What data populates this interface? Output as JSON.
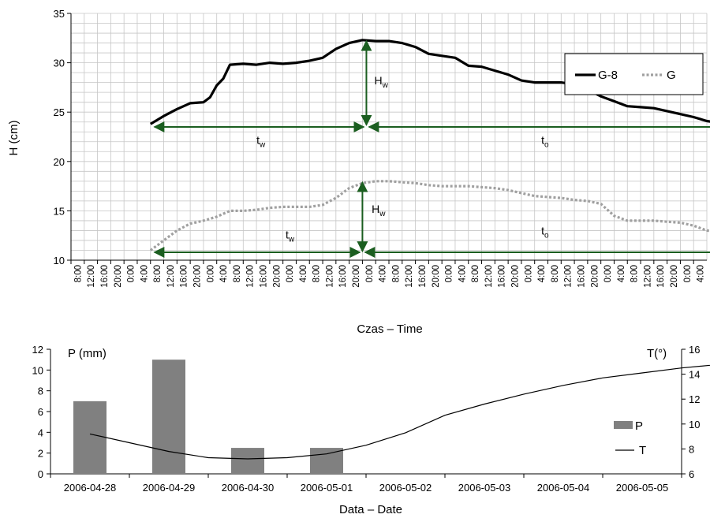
{
  "chart_data": [
    {
      "type": "line",
      "ylabel": "H (cm)",
      "xlabel": "Czas – Time",
      "ylim": [
        10,
        35
      ],
      "yticks": [
        "10",
        "15",
        "20",
        "25",
        "30",
        "35"
      ],
      "x_tick_labels": [
        "8:00",
        "12:00",
        "16:00",
        "20:00",
        "0:00",
        "4:00",
        "8:00",
        "12:00",
        "16:00",
        "20:00",
        "0:00",
        "4:00",
        "8:00",
        "12:00",
        "16:00",
        "20:00",
        "0:00",
        "4:00",
        "8:00",
        "12:00",
        "16:00",
        "20:00",
        "0:00",
        "4:00",
        "8:00",
        "12:00",
        "16:00",
        "20:00",
        "0:00",
        "4:00",
        "8:00",
        "12:00",
        "16:00",
        "20:00",
        "0:00",
        "4:00",
        "8:00",
        "12:00",
        "16:00",
        "20:00",
        "0:00",
        "4:00",
        "8:00",
        "12:00",
        "16:00",
        "20:00",
        "0:00",
        "4:00"
      ],
      "x_unit_hours": 4,
      "grid": true,
      "legend_position": "top-right",
      "series": [
        {
          "name": "G-8",
          "style": "solid",
          "color": "#000000",
          "points": [
            [
              6,
              23.8
            ],
            [
              7,
              24.6
            ],
            [
              8,
              25.3
            ],
            [
              9,
              25.9
            ],
            [
              10,
              26
            ],
            [
              10.5,
              26.5
            ],
            [
              11,
              27.7
            ],
            [
              11.5,
              28.4
            ],
            [
              12,
              29.8
            ],
            [
              13,
              29.9
            ],
            [
              14,
              29.8
            ],
            [
              15,
              30
            ],
            [
              16,
              29.9
            ],
            [
              17,
              30
            ],
            [
              18,
              30.2
            ],
            [
              19,
              30.5
            ],
            [
              20,
              31.4
            ],
            [
              21,
              32
            ],
            [
              22,
              32.3
            ],
            [
              23,
              32.2
            ],
            [
              24,
              32.2
            ],
            [
              25,
              32
            ],
            [
              26,
              31.6
            ],
            [
              27,
              30.9
            ],
            [
              28,
              30.7
            ],
            [
              29,
              30.5
            ],
            [
              30,
              29.7
            ],
            [
              31,
              29.6
            ],
            [
              32,
              29.2
            ],
            [
              33,
              28.8
            ],
            [
              34,
              28.2
            ],
            [
              35,
              28
            ],
            [
              36,
              28
            ],
            [
              37,
              28
            ],
            [
              38,
              27.8
            ],
            [
              39,
              27.3
            ],
            [
              40,
              26.6
            ],
            [
              41,
              26.1
            ],
            [
              42,
              25.6
            ],
            [
              43,
              25.5
            ],
            [
              44,
              25.4
            ],
            [
              45,
              25.1
            ],
            [
              46,
              24.8
            ],
            [
              47,
              24.5
            ],
            [
              48,
              24.1
            ],
            [
              49,
              23.9
            ],
            [
              50,
              23.7
            ],
            [
              51,
              23.7
            ],
            [
              52,
              23.7
            ],
            [
              53,
              23.7
            ]
          ]
        },
        {
          "name": "G",
          "style": "dotted",
          "color": "#a0a0a0",
          "points": [
            [
              6,
              11
            ],
            [
              7,
              12
            ],
            [
              8,
              13
            ],
            [
              9,
              13.7
            ],
            [
              10,
              14
            ],
            [
              11,
              14.4
            ],
            [
              12,
              15
            ],
            [
              13,
              15
            ],
            [
              14,
              15.1
            ],
            [
              15,
              15.3
            ],
            [
              16,
              15.4
            ],
            [
              17,
              15.4
            ],
            [
              18,
              15.4
            ],
            [
              19,
              15.6
            ],
            [
              20,
              16.3
            ],
            [
              21,
              17.3
            ],
            [
              22,
              17.8
            ],
            [
              23,
              18
            ],
            [
              24,
              18
            ],
            [
              25,
              17.9
            ],
            [
              26,
              17.8
            ],
            [
              27,
              17.6
            ],
            [
              28,
              17.5
            ],
            [
              29,
              17.5
            ],
            [
              30,
              17.5
            ],
            [
              31,
              17.4
            ],
            [
              32,
              17.3
            ],
            [
              33,
              17.1
            ],
            [
              34,
              16.8
            ],
            [
              35,
              16.5
            ],
            [
              36,
              16.4
            ],
            [
              37,
              16.3
            ],
            [
              38,
              16.1
            ],
            [
              39,
              16
            ],
            [
              40,
              15.7
            ],
            [
              41,
              14.5
            ],
            [
              42,
              14
            ],
            [
              43,
              14
            ],
            [
              44,
              14
            ],
            [
              45,
              13.9
            ],
            [
              46,
              13.8
            ],
            [
              47,
              13.5
            ],
            [
              48,
              13
            ],
            [
              49,
              12.9
            ],
            [
              50,
              12.9
            ],
            [
              51,
              12.9
            ],
            [
              52,
              12.9
            ],
            [
              53,
              12.9
            ]
          ]
        }
      ],
      "annotations": [
        {
          "text": "H",
          "sub": "w",
          "near": "G-8 peak"
        },
        {
          "text": "t",
          "sub": "w",
          "near": "G-8 rise"
        },
        {
          "text": "t",
          "sub": "o",
          "near": "G-8 fall"
        },
        {
          "text": "H",
          "sub": "w",
          "near": "G peak"
        },
        {
          "text": "t",
          "sub": "w",
          "near": "G rise"
        },
        {
          "text": "t",
          "sub": "o",
          "near": "G fall"
        }
      ]
    },
    {
      "type": "bar+line",
      "xlabel": "Data – Date",
      "ylabel_left": "P (mm)",
      "ylabel_right": "T(°)",
      "categories": [
        "2006-04-28",
        "2006-04-29",
        "2006-04-30",
        "2006-05-01",
        "2006-05-02",
        "2006-05-03",
        "2006-05-04",
        "2006-05-05"
      ],
      "ylim_left": [
        0,
        12
      ],
      "yticks_left": [
        "0",
        "2",
        "4",
        "6",
        "8",
        "10",
        "12"
      ],
      "ylim_right": [
        6,
        16
      ],
      "yticks_right": [
        "6",
        "8",
        "10",
        "12",
        "14",
        "16"
      ],
      "legend_position": "right",
      "series": [
        {
          "name": "P",
          "type": "bar",
          "color": "#808080",
          "values": [
            7,
            11,
            2.5,
            2.5,
            0,
            0,
            0,
            0
          ]
        },
        {
          "name": "T",
          "type": "line",
          "color": "#000000",
          "points": [
            [
              0.5,
              9.2
            ],
            [
              1,
              8.5
            ],
            [
              1.5,
              7.8
            ],
            [
              2,
              7.3
            ],
            [
              2.5,
              7.2
            ],
            [
              3,
              7.3
            ],
            [
              3.5,
              7.6
            ],
            [
              4,
              8.3
            ],
            [
              4.5,
              9.3
            ],
            [
              5,
              10.7
            ],
            [
              5.5,
              11.6
            ],
            [
              6,
              12.4
            ],
            [
              6.5,
              13.1
            ],
            [
              7,
              13.7
            ],
            [
              7.5,
              14.1
            ],
            [
              8,
              14.5
            ],
            [
              8.5,
              14.8
            ]
          ]
        }
      ]
    }
  ]
}
